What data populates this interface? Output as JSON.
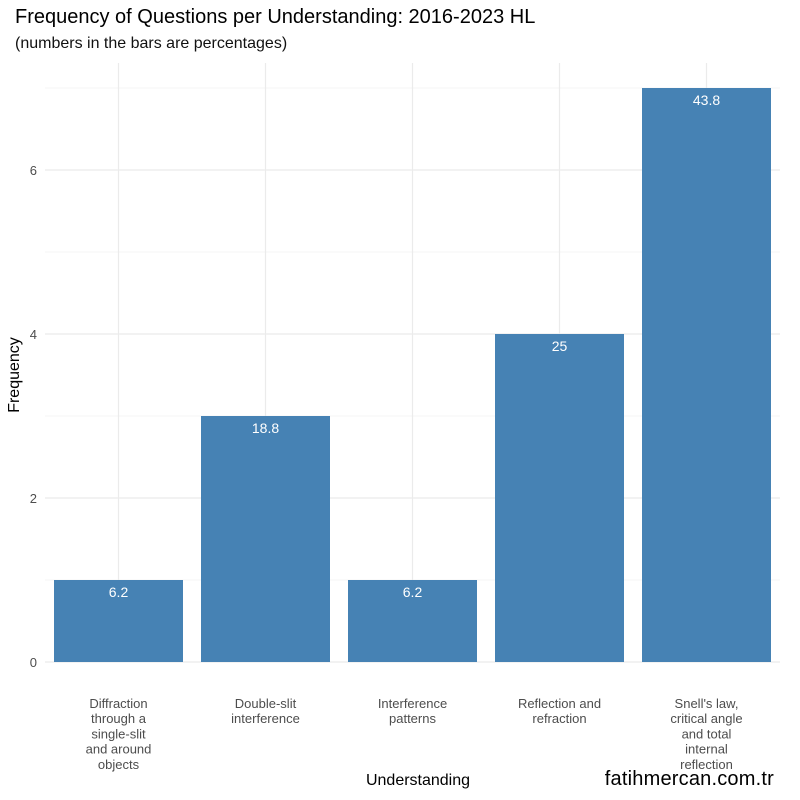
{
  "chart_data": {
    "type": "bar",
    "title": "Frequency of Questions per Understanding: 2016-2023 HL",
    "subtitle": "(numbers in the bars are percentages)",
    "xlabel": "Understanding",
    "ylabel": "Frequency",
    "categories": [
      [
        "Diffraction",
        "through a",
        "single-slit",
        "and around",
        "objects"
      ],
      [
        "Double-slit",
        "interference"
      ],
      [
        "Interference",
        "patterns"
      ],
      [
        "Reflection and",
        "refraction"
      ],
      [
        "Snell's law,",
        "critical angle",
        "and total",
        "internal",
        "reflection"
      ]
    ],
    "values": [
      1,
      3,
      1,
      4,
      7
    ],
    "data_labels": [
      "6.2",
      "18.8",
      "6.2",
      "25",
      "43.8"
    ],
    "yticks": [
      0,
      2,
      4,
      6
    ],
    "ylim": [
      0,
      7
    ],
    "grid": true,
    "bar_color": "#4682B4",
    "watermark": "fatihmercan.com.tr"
  }
}
